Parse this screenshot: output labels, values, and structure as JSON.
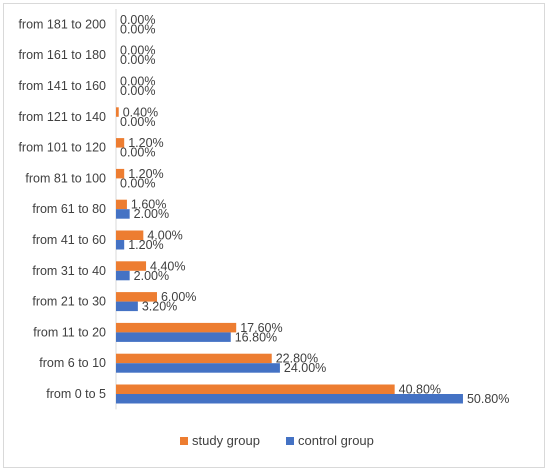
{
  "colors": {
    "study": "#ED7D31",
    "control": "#4472C4",
    "text": "#404040",
    "axis": "#d9d9d9"
  },
  "chart_data": {
    "type": "bar",
    "orientation": "horizontal",
    "categories": [
      "from 0 to 5",
      "from 6 to 10",
      "from 11 to 20",
      "from 21 to 30",
      "from 31 to 40",
      "from 41 to 60",
      "from 61 to 80",
      "from 81 to 100",
      "from 101 to 120",
      "from 121 to 140",
      "from 141 to 160",
      "from 161 to 180",
      "from 181 to 200"
    ],
    "series": [
      {
        "name": "study group",
        "values": [
          40.8,
          22.8,
          17.6,
          6.0,
          4.4,
          4.0,
          1.6,
          1.2,
          1.2,
          0.4,
          0.0,
          0.0,
          0.0
        ],
        "labels": [
          "40.80%",
          "22.80%",
          "17.60%",
          "6.00%",
          "4.40%",
          "4.00%",
          "1.60%",
          "1.20%",
          "1.20%",
          "0.40%",
          "0.00%",
          "0.00%",
          "0.00%"
        ]
      },
      {
        "name": "control group",
        "values": [
          50.8,
          24.0,
          16.8,
          3.2,
          2.0,
          1.2,
          2.0,
          0.0,
          0.0,
          0.0,
          0.0,
          0.0,
          0.0
        ],
        "labels": [
          "50.80%",
          "24.00%",
          "16.80%",
          "3.20%",
          "2.00%",
          "1.20%",
          "2.00%",
          "0.00%",
          "0.00%",
          "0.00%",
          "0.00%",
          "0.00%",
          "0.00%"
        ]
      }
    ],
    "xlim": [
      0,
      60
    ],
    "grid": false,
    "legend_position": "bottom"
  }
}
